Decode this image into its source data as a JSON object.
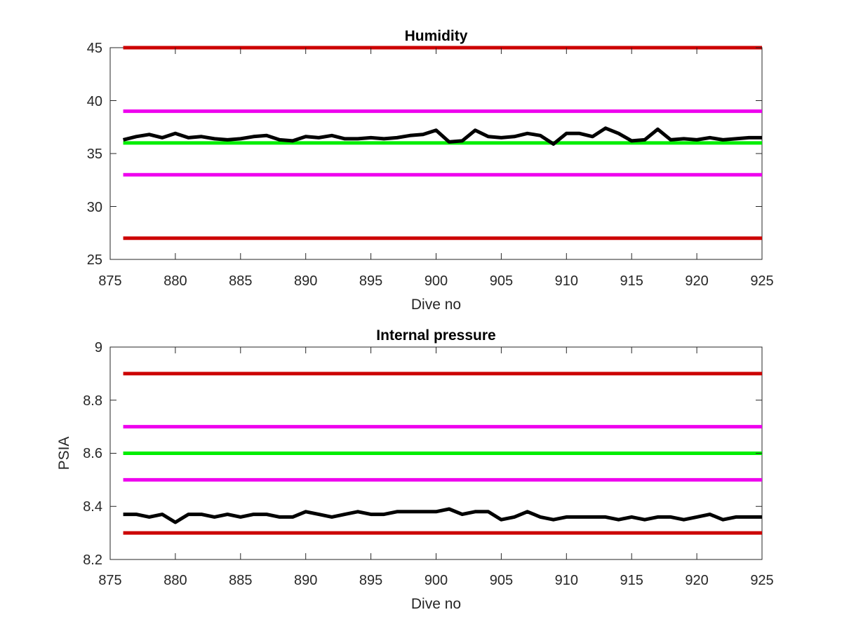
{
  "chart_data": [
    {
      "type": "line",
      "title": "Humidity",
      "xlabel": "Dive no",
      "ylabel": "",
      "xlim": [
        875,
        925
      ],
      "ylim": [
        25,
        45
      ],
      "xticks": [
        "875",
        "880",
        "885",
        "890",
        "895",
        "900",
        "905",
        "910",
        "915",
        "920",
        "925"
      ],
      "yticks": [
        "25",
        "30",
        "35",
        "40",
        "45"
      ],
      "grid": false,
      "reference_lines": [
        {
          "y": 45,
          "color": "#cc0000"
        },
        {
          "y": 39,
          "color": "#ee00ee"
        },
        {
          "y": 36,
          "color": "#00ee00"
        },
        {
          "y": 33,
          "color": "#ee00ee"
        },
        {
          "y": 27,
          "color": "#cc0000"
        }
      ],
      "series": [
        {
          "color": "#000000",
          "x": [
            876,
            877,
            878,
            879,
            880,
            881,
            882,
            883,
            884,
            885,
            886,
            887,
            888,
            889,
            890,
            891,
            892,
            893,
            894,
            895,
            896,
            897,
            898,
            899,
            900,
            901,
            902,
            903,
            904,
            905,
            906,
            907,
            908,
            909,
            910,
            911,
            912,
            913,
            914,
            915,
            916,
            917,
            918,
            919,
            920,
            921,
            922,
            923,
            924,
            925
          ],
          "y": [
            36.3,
            36.6,
            36.8,
            36.5,
            36.9,
            36.5,
            36.6,
            36.4,
            36.3,
            36.4,
            36.6,
            36.7,
            36.3,
            36.2,
            36.6,
            36.5,
            36.7,
            36.4,
            36.4,
            36.5,
            36.4,
            36.5,
            36.7,
            36.8,
            37.2,
            36.1,
            36.2,
            37.2,
            36.6,
            36.5,
            36.6,
            36.9,
            36.7,
            35.9,
            36.9,
            36.9,
            36.6,
            37.4,
            36.9,
            36.2,
            36.3,
            37.3,
            36.3,
            36.4,
            36.3,
            36.5,
            36.3,
            36.4,
            36.5,
            36.5
          ]
        }
      ]
    },
    {
      "type": "line",
      "title": "Internal pressure",
      "xlabel": "Dive no",
      "ylabel": "PSIA",
      "xlim": [
        875,
        925
      ],
      "ylim": [
        8.2,
        9
      ],
      "xticks": [
        "875",
        "880",
        "885",
        "890",
        "895",
        "900",
        "905",
        "910",
        "915",
        "920",
        "925"
      ],
      "yticks": [
        "8.2",
        "8.4",
        "8.6",
        "8.8",
        "9"
      ],
      "grid": false,
      "reference_lines": [
        {
          "y": 8.9,
          "color": "#cc0000"
        },
        {
          "y": 8.7,
          "color": "#ee00ee"
        },
        {
          "y": 8.6,
          "color": "#00ee00"
        },
        {
          "y": 8.5,
          "color": "#ee00ee"
        },
        {
          "y": 8.3,
          "color": "#cc0000"
        }
      ],
      "series": [
        {
          "color": "#000000",
          "x": [
            876,
            877,
            878,
            879,
            880,
            881,
            882,
            883,
            884,
            885,
            886,
            887,
            888,
            889,
            890,
            891,
            892,
            893,
            894,
            895,
            896,
            897,
            898,
            899,
            900,
            901,
            902,
            903,
            904,
            905,
            906,
            907,
            908,
            909,
            910,
            911,
            912,
            913,
            914,
            915,
            916,
            917,
            918,
            919,
            920,
            921,
            922,
            923,
            924,
            925
          ],
          "y": [
            8.37,
            8.37,
            8.36,
            8.37,
            8.34,
            8.37,
            8.37,
            8.36,
            8.37,
            8.36,
            8.37,
            8.37,
            8.36,
            8.36,
            8.38,
            8.37,
            8.36,
            8.37,
            8.38,
            8.37,
            8.37,
            8.38,
            8.38,
            8.38,
            8.38,
            8.39,
            8.37,
            8.38,
            8.38,
            8.35,
            8.36,
            8.38,
            8.36,
            8.35,
            8.36,
            8.36,
            8.36,
            8.36,
            8.35,
            8.36,
            8.35,
            8.36,
            8.36,
            8.35,
            8.36,
            8.37,
            8.35,
            8.36,
            8.36,
            8.36
          ]
        }
      ]
    }
  ]
}
